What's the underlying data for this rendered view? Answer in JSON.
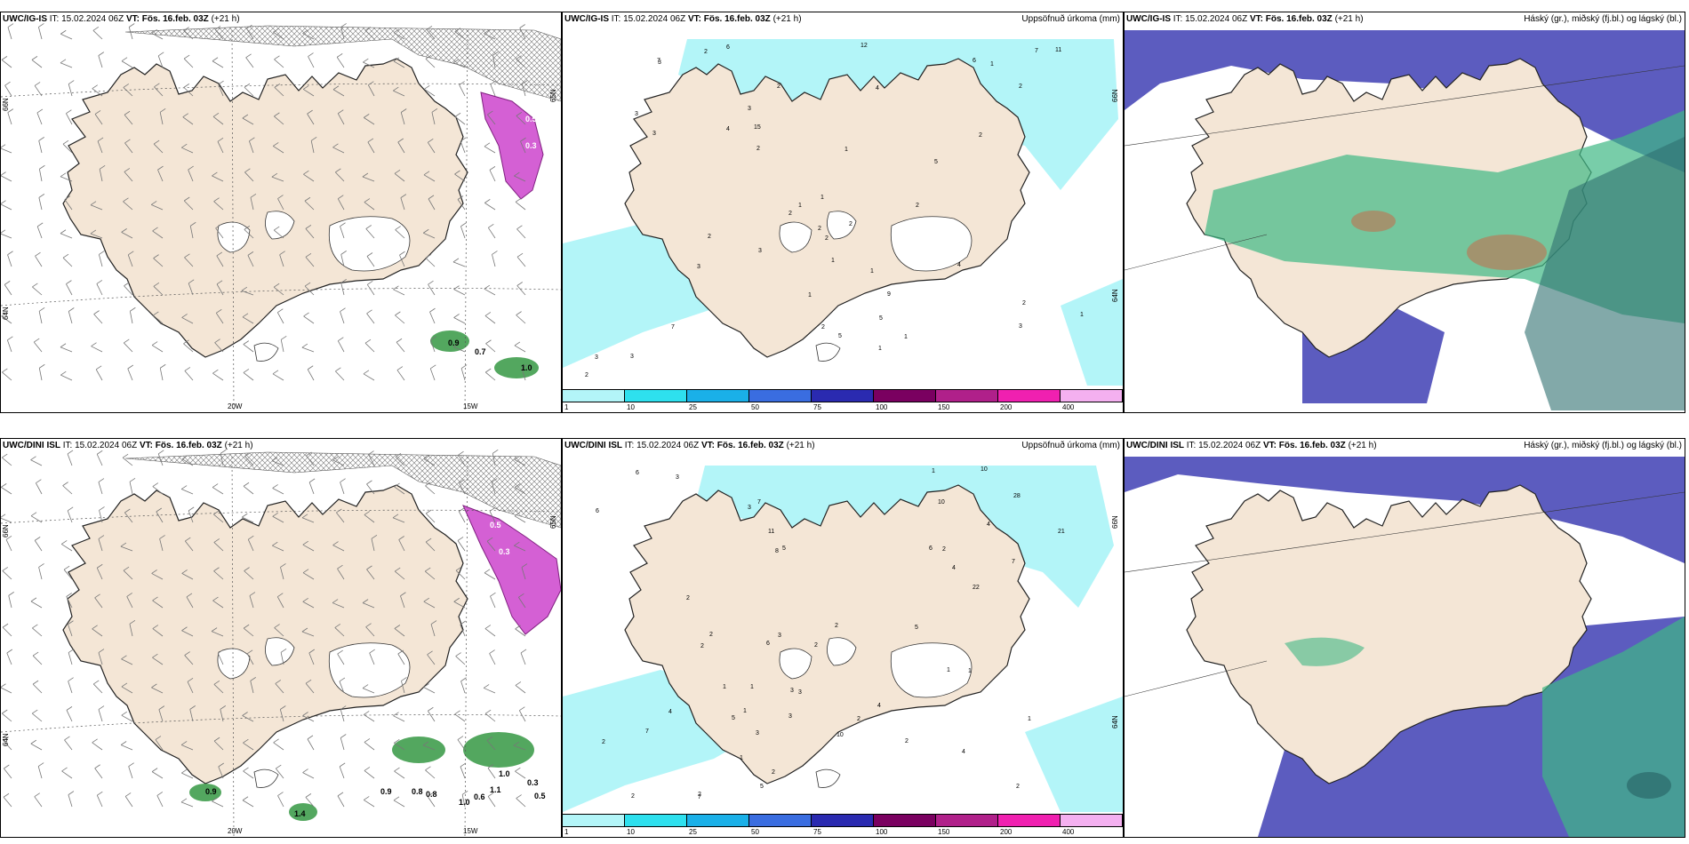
{
  "colors": {
    "land": "#f4e6d6",
    "snow_white": "#ffffff",
    "precip_cyan": "#b3f5f8",
    "ice_hatch": "#888888",
    "magenta": "#cc44cc",
    "green": "#3fb884",
    "blue": "#4a4ab8",
    "teal": "#2e6f6f"
  },
  "rows": [
    {
      "model_label": "UWC/IG-IS",
      "panels": [
        {
          "it_label": "IT: 15.02.2024 06Z",
          "vt_label": "VT: Fös. 16.feb. 03Z",
          "lead_label": "(+21 h)",
          "right_title": "",
          "kind": "wind",
          "lat_labels": [
            "66N",
            "64N",
            "65N"
          ],
          "lon_labels": [
            "20W",
            "15W"
          ],
          "values": [
            "0.5",
            "0.3",
            "0.9",
            "0.7",
            "1.0"
          ]
        },
        {
          "it_label": "IT: 15.02.2024 06Z",
          "vt_label": "VT: Fös. 16.feb. 03Z",
          "lead_label": "(+21 h)",
          "right_title": "Uppsöfnuð úrkoma (mm)",
          "kind": "precip",
          "lat_labels": [
            "66N",
            "64N"
          ],
          "values": [
            "2",
            "2",
            "2",
            "2",
            "3",
            "3",
            "4",
            "4",
            "3",
            "7",
            "6",
            "6",
            "7",
            "11",
            "15",
            "12",
            "3",
            "1",
            "1",
            "1",
            "2",
            "1",
            "2",
            "1",
            "2",
            "4",
            "3",
            "3",
            "2",
            "5",
            "2",
            "2",
            "1",
            "2",
            "1",
            "9",
            "5",
            "2",
            "2",
            "1",
            "3",
            "1",
            "1",
            "7",
            "3",
            "2",
            "5",
            "3"
          ]
        },
        {
          "it_label": "IT: 15.02.2024 06Z",
          "vt_label": "VT: Fös. 16.feb. 03Z",
          "lead_label": "(+21 h)",
          "right_title": "Háský (gr.), miðský (fj.bl.) og lágský (bl.)",
          "kind": "cloud"
        }
      ]
    },
    {
      "model_label": "UWC/DINI ISL",
      "panels": [
        {
          "it_label": "IT: 15.02.2024 06Z",
          "vt_label": "VT: Fös. 16.feb. 03Z",
          "lead_label": "(+21 h)",
          "right_title": "",
          "kind": "wind",
          "lat_labels": [
            "66N",
            "64N",
            "65N"
          ],
          "lon_labels": [
            "20W",
            "15W"
          ],
          "values": [
            "0.5",
            "0.3",
            "0.9",
            "1.4",
            "0.9",
            "0.8",
            "0.8",
            "1.0",
            "0.6",
            "1.1",
            "1.0",
            "0.3",
            "0.5"
          ]
        },
        {
          "it_label": "IT: 15.02.2024 06Z",
          "vt_label": "VT: Fös. 16.feb. 03Z",
          "lead_label": "(+21 h)",
          "right_title": "Uppsöfnuð úrkoma (mm)",
          "kind": "precip",
          "lat_labels": [
            "66N",
            "64N"
          ],
          "values": [
            "1",
            "3",
            "5",
            "8",
            "10",
            "2",
            "4",
            "3",
            "10",
            "11",
            "4",
            "6",
            "7",
            "7",
            "6",
            "6",
            "28",
            "21",
            "22",
            "2",
            "1",
            "1",
            "1",
            "1",
            "6",
            "2",
            "1",
            "2",
            "3",
            "2",
            "2",
            "5",
            "3",
            "3",
            "2",
            "2",
            "2",
            "2",
            "7",
            "4",
            "4",
            "5",
            "3",
            "10",
            "7",
            "4",
            "2",
            "2",
            "2",
            "1",
            "5",
            "3",
            "1"
          ]
        },
        {
          "it_label": "IT: 15.02.2024 06Z",
          "vt_label": "VT: Fös. 16.feb. 03Z",
          "lead_label": "(+21 h)",
          "right_title": "Háský (gr.), miðský (fj.bl.) og lágský (bl.)",
          "kind": "cloud"
        }
      ]
    }
  ],
  "colorbar": {
    "ticks": [
      "1",
      "10",
      "25",
      "50",
      "75",
      "100",
      "150",
      "200",
      "400"
    ],
    "colors": [
      "#b3f5f8",
      "#2ee0ee",
      "#1ab0e8",
      "#3a6de0",
      "#2a2ab0",
      "#7a0060",
      "#b0208a",
      "#f020b0",
      "#f4b0f0"
    ]
  }
}
